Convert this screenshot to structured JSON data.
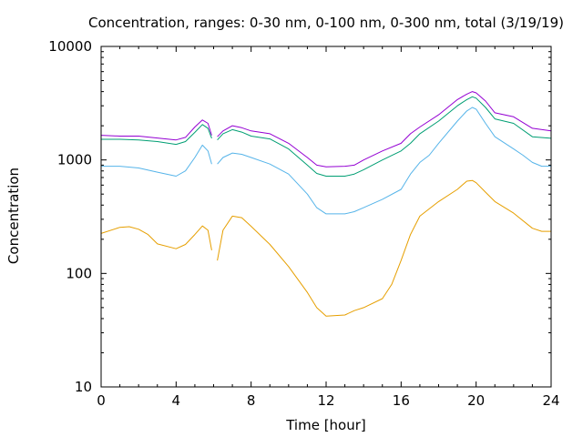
{
  "chart_data": {
    "type": "line",
    "title": "Concentration, ranges: 0-30 nm, 0-100 nm, 0-300 nm, total (3/19/19)",
    "xlabel": "Time [hour]",
    "ylabel": "Concentration",
    "xlim": [
      0,
      24
    ],
    "ylim": [
      10,
      10000
    ],
    "yscale": "log",
    "grid": false,
    "x_ticks": [
      0,
      4,
      8,
      12,
      16,
      20,
      24
    ],
    "y_ticks": [
      10,
      100,
      1000,
      10000
    ],
    "x_tick_labels": [
      "0",
      "4",
      "8",
      "12",
      "16",
      "20",
      "24"
    ],
    "y_tick_labels": [
      "10",
      "100",
      "1000",
      "10000"
    ],
    "series": [
      {
        "color": "#e69f00",
        "segments": [
          [
            [
              0,
              225
            ],
            [
              1,
              255
            ],
            [
              1.5,
              258
            ],
            [
              2,
              245
            ],
            [
              2.5,
              220
            ],
            [
              3,
              182
            ],
            [
              4,
              165
            ],
            [
              4.5,
              180
            ],
            [
              5,
              220
            ],
            [
              5.4,
              262
            ],
            [
              5.7,
              240
            ],
            [
              5.9,
              160
            ]
          ],
          [
            [
              6.2,
              130
            ],
            [
              6.5,
              240
            ],
            [
              7,
              320
            ],
            [
              7.5,
              310
            ],
            [
              8,
              260
            ],
            [
              9,
              180
            ],
            [
              10,
              115
            ],
            [
              11,
              68
            ],
            [
              11.5,
              50
            ],
            [
              12,
              42
            ],
            [
              13,
              43
            ],
            [
              13.5,
              47
            ],
            [
              14,
              50
            ],
            [
              15,
              60
            ],
            [
              15.5,
              80
            ],
            [
              16,
              130
            ],
            [
              16.5,
              220
            ],
            [
              17,
              320
            ],
            [
              18,
              430
            ],
            [
              19,
              550
            ],
            [
              19.5,
              650
            ],
            [
              19.8,
              660
            ],
            [
              20,
              630
            ],
            [
              20.5,
              520
            ],
            [
              21,
              430
            ],
            [
              22,
              340
            ],
            [
              23,
              250
            ],
            [
              23.5,
              235
            ],
            [
              24,
              235
            ]
          ]
        ]
      },
      {
        "color": "#56b4e9",
        "segments": [
          [
            [
              0,
              880
            ],
            [
              1,
              880
            ],
            [
              2,
              850
            ],
            [
              3,
              780
            ],
            [
              4,
              720
            ],
            [
              4.5,
              800
            ],
            [
              5,
              1050
            ],
            [
              5.4,
              1350
            ],
            [
              5.7,
              1200
            ],
            [
              5.9,
              920
            ]
          ],
          [
            [
              6.2,
              920
            ],
            [
              6.5,
              1050
            ],
            [
              7,
              1150
            ],
            [
              7.5,
              1120
            ],
            [
              8,
              1050
            ],
            [
              9,
              920
            ],
            [
              10,
              750
            ],
            [
              11,
              500
            ],
            [
              11.5,
              380
            ],
            [
              12,
              335
            ],
            [
              13,
              335
            ],
            [
              13.5,
              350
            ],
            [
              14,
              380
            ],
            [
              15,
              450
            ],
            [
              16,
              550
            ],
            [
              16.5,
              750
            ],
            [
              17,
              950
            ],
            [
              17.5,
              1100
            ],
            [
              18,
              1400
            ],
            [
              19,
              2200
            ],
            [
              19.5,
              2700
            ],
            [
              19.8,
              2900
            ],
            [
              20,
              2800
            ],
            [
              20.5,
              2100
            ],
            [
              21,
              1600
            ],
            [
              22,
              1250
            ],
            [
              22.5,
              1100
            ],
            [
              23,
              950
            ],
            [
              23.5,
              880
            ],
            [
              24,
              880
            ]
          ]
        ]
      },
      {
        "color": "#009e73",
        "segments": [
          [
            [
              0,
              1520
            ],
            [
              1,
              1520
            ],
            [
              2,
              1500
            ],
            [
              3,
              1450
            ],
            [
              4,
              1370
            ],
            [
              4.5,
              1450
            ],
            [
              5,
              1750
            ],
            [
              5.4,
              2050
            ],
            [
              5.7,
              1900
            ],
            [
              5.9,
              1550
            ]
          ],
          [
            [
              6.2,
              1500
            ],
            [
              6.5,
              1700
            ],
            [
              7,
              1850
            ],
            [
              7.5,
              1760
            ],
            [
              8,
              1620
            ],
            [
              9,
              1530
            ],
            [
              10,
              1250
            ],
            [
              11,
              900
            ],
            [
              11.5,
              760
            ],
            [
              12,
              720
            ],
            [
              13,
              720
            ],
            [
              13.5,
              750
            ],
            [
              14,
              820
            ],
            [
              15,
              1000
            ],
            [
              16,
              1200
            ],
            [
              16.5,
              1400
            ],
            [
              17,
              1700
            ],
            [
              18,
              2200
            ],
            [
              19,
              3000
            ],
            [
              19.5,
              3400
            ],
            [
              19.8,
              3600
            ],
            [
              20,
              3500
            ],
            [
              20.5,
              2900
            ],
            [
              21,
              2300
            ],
            [
              22,
              2100
            ],
            [
              23,
              1600
            ],
            [
              24,
              1550
            ]
          ]
        ]
      },
      {
        "color": "#9400d3",
        "segments": [
          [
            [
              0,
              1650
            ],
            [
              1,
              1620
            ],
            [
              2,
              1620
            ],
            [
              3,
              1560
            ],
            [
              4,
              1500
            ],
            [
              4.5,
              1580
            ],
            [
              5,
              1950
            ],
            [
              5.4,
              2250
            ],
            [
              5.7,
              2100
            ],
            [
              5.9,
              1650
            ]
          ],
          [
            [
              6.2,
              1600
            ],
            [
              6.5,
              1800
            ],
            [
              7,
              2000
            ],
            [
              7.5,
              1920
            ],
            [
              8,
              1800
            ],
            [
              9,
              1700
            ],
            [
              10,
              1400
            ],
            [
              11,
              1050
            ],
            [
              11.5,
              900
            ],
            [
              12,
              870
            ],
            [
              13,
              880
            ],
            [
              13.5,
              900
            ],
            [
              14,
              1000
            ],
            [
              15,
              1200
            ],
            [
              16,
              1400
            ],
            [
              16.5,
              1700
            ],
            [
              17,
              1950
            ],
            [
              18,
              2500
            ],
            [
              19,
              3400
            ],
            [
              19.5,
              3800
            ],
            [
              19.8,
              4000
            ],
            [
              20,
              3900
            ],
            [
              20.5,
              3300
            ],
            [
              21,
              2600
            ],
            [
              22,
              2400
            ],
            [
              23,
              1900
            ],
            [
              24,
              1800
            ]
          ]
        ]
      }
    ]
  }
}
